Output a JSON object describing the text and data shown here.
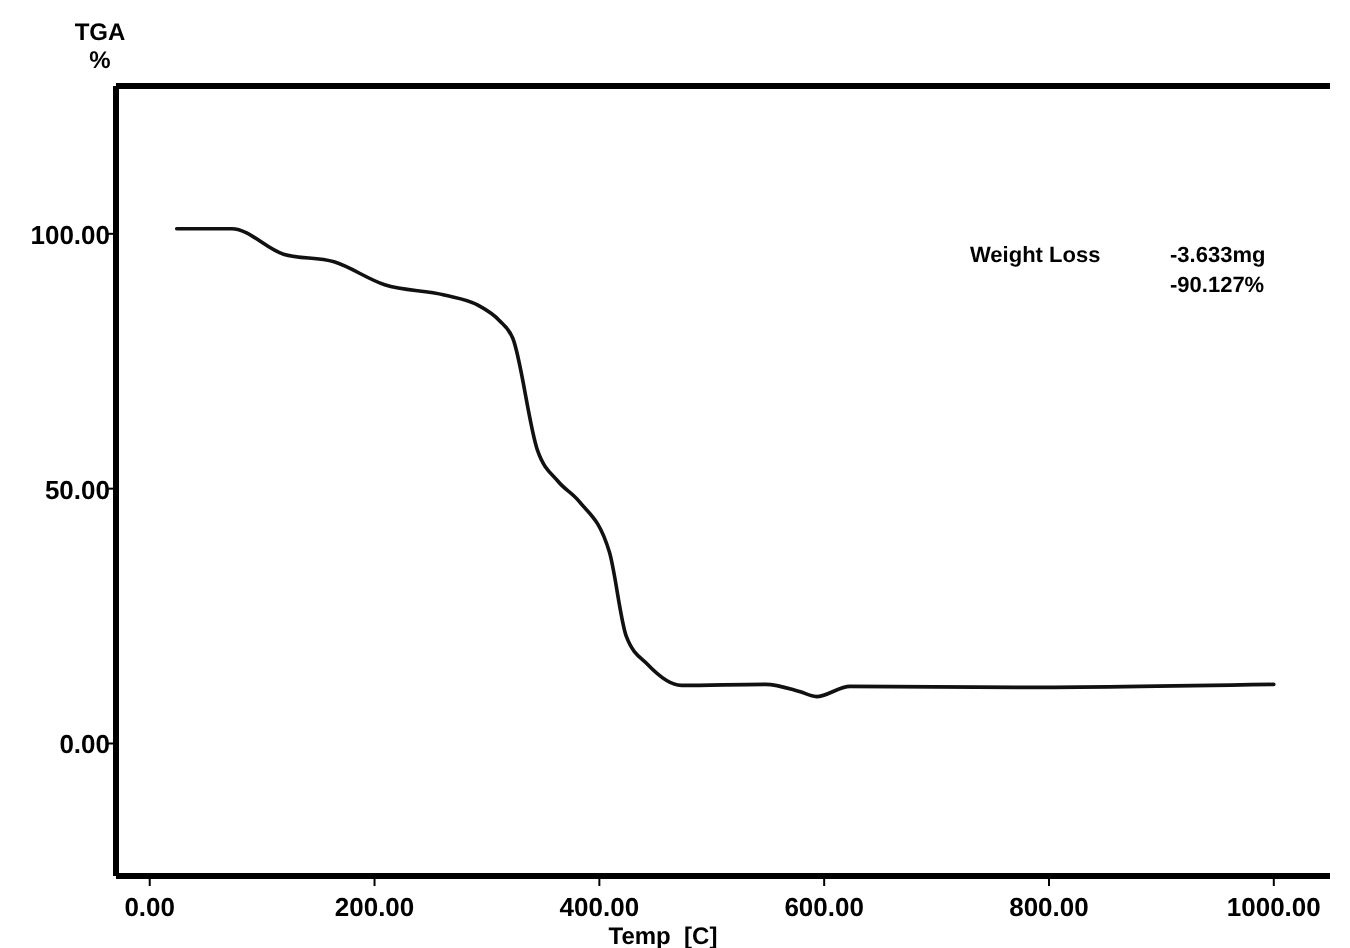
{
  "chart_data": {
    "type": "line",
    "xlabel": "Temp  [C]",
    "ylabel": "TGA %",
    "annotations": [
      "Weight Loss",
      "-3.633mg",
      "-90.127%"
    ],
    "x": [
      24,
      73,
      119,
      164,
      209,
      262,
      292,
      311,
      323,
      345,
      363,
      382,
      409,
      424,
      443,
      473,
      548,
      578,
      593,
      623,
      773,
      1000
    ],
    "series": [
      {
        "color": "#111111",
        "values": [
          101,
          101,
          96,
          94.5,
          90,
          88,
          86,
          83,
          79.5,
          57.5,
          51.5,
          47.5,
          37.5,
          21,
          15.5,
          11.4,
          11.6,
          10.2,
          9.2,
          11.2,
          11,
          11.6
        ]
      }
    ],
    "xlim": [
      -30,
      1050
    ],
    "ylim": [
      -26,
      129
    ],
    "xticks": [
      {
        "value": 0,
        "label": "0.00"
      },
      {
        "value": 200,
        "label": "200.00"
      },
      {
        "value": 400,
        "label": "400.00"
      },
      {
        "value": 600,
        "label": "600.00"
      },
      {
        "value": 800,
        "label": "800.00"
      },
      {
        "value": 1000,
        "label": "1000.00"
      }
    ],
    "yticks": [
      {
        "value": 0,
        "label": "0.00"
      },
      {
        "value": 50,
        "label": "50.00"
      },
      {
        "value": 100,
        "label": "100.00"
      }
    ],
    "grid": false,
    "marker": "none",
    "line_style": "solid"
  }
}
